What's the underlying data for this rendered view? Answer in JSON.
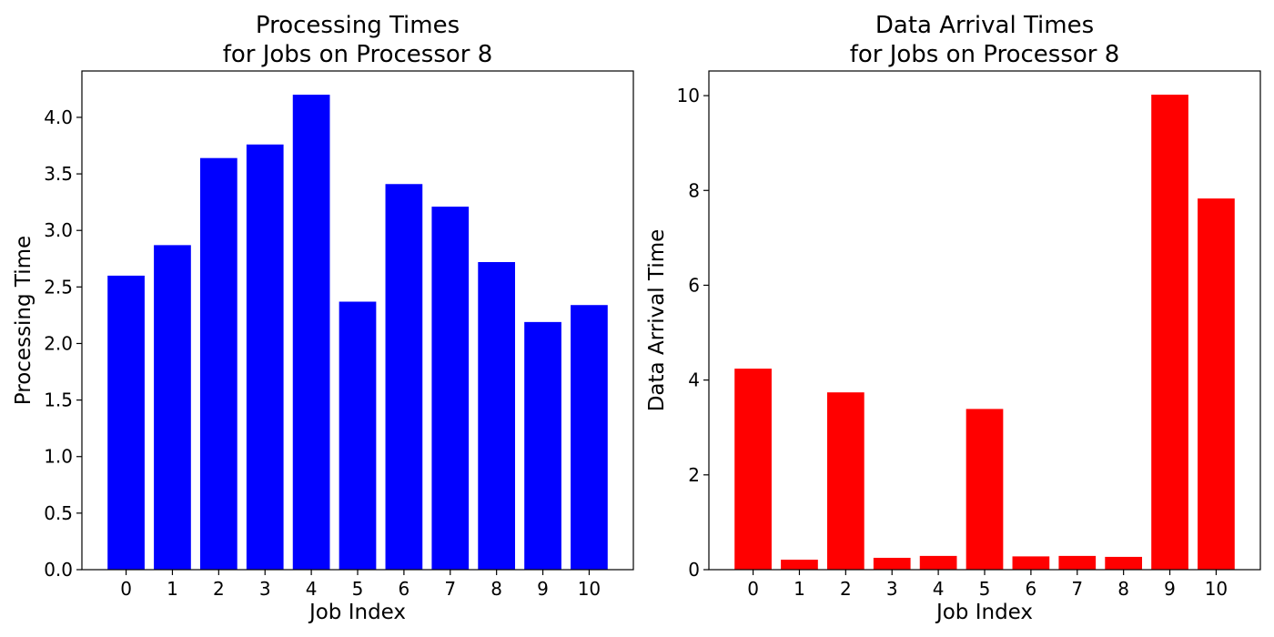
{
  "chart_data": [
    {
      "type": "bar",
      "title": [
        "Processing Times",
        "for Jobs on Processor 8"
      ],
      "xlabel": "Job Index",
      "ylabel": "Processing Time",
      "categories": [
        "0",
        "1",
        "2",
        "3",
        "4",
        "5",
        "6",
        "7",
        "8",
        "9",
        "10"
      ],
      "values": [
        2.6,
        2.87,
        3.64,
        3.76,
        4.2,
        2.37,
        3.41,
        3.21,
        2.72,
        2.19,
        2.34
      ],
      "ylim": [
        0,
        4.41
      ],
      "yticks": [
        0.0,
        0.5,
        1.0,
        1.5,
        2.0,
        2.5,
        3.0,
        3.5,
        4.0
      ],
      "ytick_labels": [
        "0.0",
        "0.5",
        "1.0",
        "1.5",
        "2.0",
        "2.5",
        "3.0",
        "3.5",
        "4.0"
      ],
      "color": "#0000ff",
      "grid": false
    },
    {
      "type": "bar",
      "title": [
        "Data Arrival Times",
        "for Jobs on Processor 8"
      ],
      "xlabel": "Job Index",
      "ylabel": "Data Arrival Time",
      "categories": [
        "0",
        "1",
        "2",
        "3",
        "4",
        "5",
        "6",
        "7",
        "8",
        "9",
        "10"
      ],
      "values": [
        4.24,
        0.21,
        3.74,
        0.25,
        0.29,
        3.39,
        0.28,
        0.29,
        0.27,
        10.02,
        7.83
      ],
      "ylim": [
        0,
        10.52
      ],
      "yticks": [
        0,
        2,
        4,
        6,
        8,
        10
      ],
      "ytick_labels": [
        "0",
        "2",
        "4",
        "6",
        "8",
        "10"
      ],
      "color": "#ff0000",
      "grid": false
    }
  ]
}
